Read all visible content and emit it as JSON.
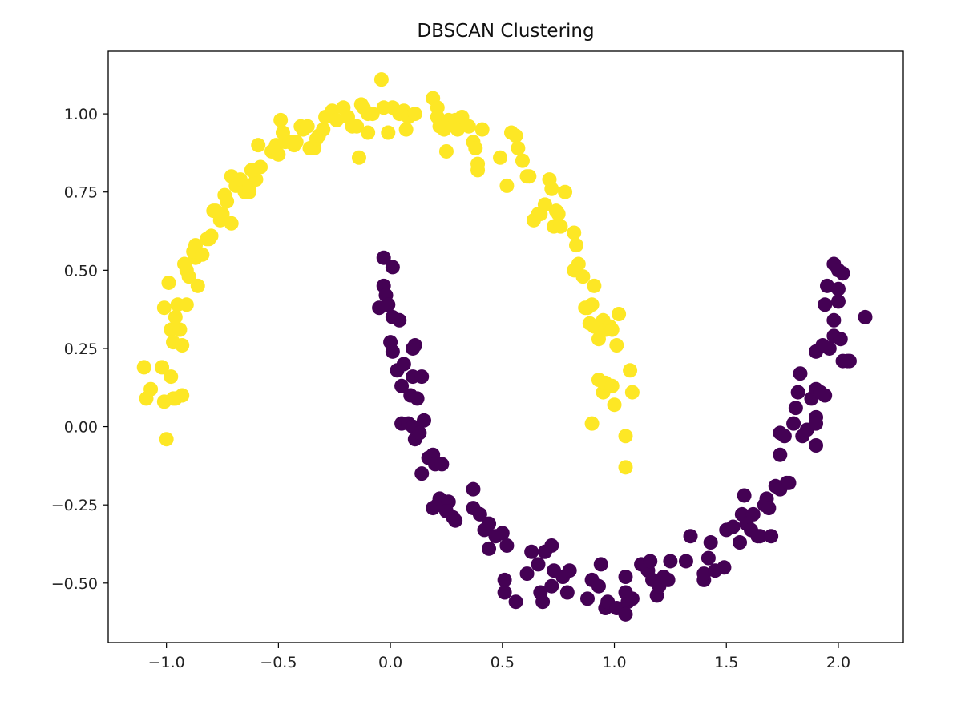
{
  "chart_data": {
    "type": "scatter",
    "title": "DBSCAN Clustering",
    "xlabel": "",
    "ylabel": "",
    "xlim": [
      -1.26,
      2.29
    ],
    "ylim": [
      -0.69,
      1.2
    ],
    "grid": false,
    "x_ticks": [
      "−1.0",
      "−0.5",
      "0.0",
      "0.5",
      "1.0",
      "1.5",
      "2.0"
    ],
    "x_tick_values": [
      -1.0,
      -0.5,
      0.0,
      0.5,
      1.0,
      1.5,
      2.0
    ],
    "y_ticks": [
      "−0.50",
      "−0.25",
      "0.00",
      "0.25",
      "0.50",
      "0.75",
      "1.00"
    ],
    "y_tick_values": [
      -0.5,
      -0.25,
      0.0,
      0.25,
      0.5,
      0.75,
      1.0
    ],
    "series": [
      {
        "color": "#fde725",
        "points": [
          [
            -1.1,
            0.19
          ],
          [
            -1.09,
            0.09
          ],
          [
            -1.07,
            0.12
          ],
          [
            -1.02,
            0.19
          ],
          [
            -1.01,
            0.08
          ],
          [
            -1.0,
            -0.04
          ],
          [
            -0.98,
            0.16
          ],
          [
            -0.97,
            0.09
          ],
          [
            -0.96,
            0.09
          ],
          [
            -0.93,
            0.1
          ],
          [
            -1.01,
            0.38
          ],
          [
            -0.99,
            0.46
          ],
          [
            -0.98,
            0.31
          ],
          [
            -0.97,
            0.27
          ],
          [
            -0.95,
            0.39
          ],
          [
            -0.94,
            0.31
          ],
          [
            -0.93,
            0.26
          ],
          [
            -0.96,
            0.35
          ],
          [
            -0.91,
            0.39
          ],
          [
            -0.91,
            0.5
          ],
          [
            -0.92,
            0.52
          ],
          [
            -0.9,
            0.48
          ],
          [
            -0.87,
            0.54
          ],
          [
            -0.86,
            0.45
          ],
          [
            -0.88,
            0.56
          ],
          [
            -0.87,
            0.58
          ],
          [
            -0.84,
            0.55
          ],
          [
            -0.82,
            0.6
          ],
          [
            -0.81,
            0.6
          ],
          [
            -0.8,
            0.61
          ],
          [
            -0.79,
            0.69
          ],
          [
            -0.78,
            0.69
          ],
          [
            -0.76,
            0.66
          ],
          [
            -0.75,
            0.68
          ],
          [
            -0.74,
            0.74
          ],
          [
            -0.73,
            0.72
          ],
          [
            -0.71,
            0.65
          ],
          [
            -0.71,
            0.8
          ],
          [
            -0.69,
            0.77
          ],
          [
            -0.67,
            0.79
          ],
          [
            -0.65,
            0.75
          ],
          [
            -0.63,
            0.75
          ],
          [
            -0.63,
            0.77
          ],
          [
            -0.6,
            0.79
          ],
          [
            -0.62,
            0.82
          ],
          [
            -0.59,
            0.9
          ],
          [
            -0.58,
            0.83
          ],
          [
            -0.53,
            0.88
          ],
          [
            -0.51,
            0.9
          ],
          [
            -0.5,
            0.87
          ],
          [
            -0.49,
            0.98
          ],
          [
            -0.48,
            0.94
          ],
          [
            -0.47,
            0.91
          ],
          [
            -0.45,
            0.91
          ],
          [
            -0.43,
            0.9
          ],
          [
            -0.42,
            0.91
          ],
          [
            -0.4,
            0.96
          ],
          [
            -0.39,
            0.95
          ],
          [
            -0.37,
            0.96
          ],
          [
            -0.36,
            0.89
          ],
          [
            -0.34,
            0.89
          ],
          [
            -0.33,
            0.92
          ],
          [
            -0.32,
            0.93
          ],
          [
            -0.3,
            0.95
          ],
          [
            -0.29,
            0.99
          ],
          [
            -0.26,
            1.01
          ],
          [
            -0.24,
            0.98
          ],
          [
            -0.21,
            1.02
          ],
          [
            -0.19,
            0.99
          ],
          [
            -0.17,
            0.96
          ],
          [
            -0.15,
            0.96
          ],
          [
            -0.14,
            0.86
          ],
          [
            -0.13,
            1.03
          ],
          [
            -0.12,
            1.02
          ],
          [
            -0.1,
            1.0
          ],
          [
            -0.1,
            0.94
          ],
          [
            -0.08,
            1.0
          ],
          [
            -0.04,
            1.11
          ],
          [
            -0.03,
            1.02
          ],
          [
            -0.01,
            0.94
          ],
          [
            0.01,
            1.02
          ],
          [
            0.04,
            1.0
          ],
          [
            0.06,
            1.01
          ],
          [
            0.07,
            0.95
          ],
          [
            0.08,
            0.99
          ],
          [
            0.11,
            1.0
          ],
          [
            0.19,
            1.05
          ],
          [
            0.21,
            1.02
          ],
          [
            0.21,
            0.99
          ],
          [
            0.22,
            0.96
          ],
          [
            0.24,
            0.95
          ],
          [
            0.25,
            0.88
          ],
          [
            0.26,
            0.98
          ],
          [
            0.29,
            0.98
          ],
          [
            0.3,
            0.95
          ],
          [
            0.32,
            0.99
          ],
          [
            0.35,
            0.96
          ],
          [
            0.37,
            0.91
          ],
          [
            0.38,
            0.89
          ],
          [
            0.39,
            0.84
          ],
          [
            0.39,
            0.82
          ],
          [
            0.41,
            0.95
          ],
          [
            0.49,
            0.86
          ],
          [
            0.52,
            0.77
          ],
          [
            0.54,
            0.94
          ],
          [
            0.56,
            0.93
          ],
          [
            0.57,
            0.89
          ],
          [
            0.59,
            0.85
          ],
          [
            0.61,
            0.8
          ],
          [
            0.62,
            0.8
          ],
          [
            0.64,
            0.66
          ],
          [
            0.66,
            0.68
          ],
          [
            0.67,
            0.68
          ],
          [
            0.69,
            0.71
          ],
          [
            0.71,
            0.79
          ],
          [
            0.72,
            0.76
          ],
          [
            0.73,
            0.64
          ],
          [
            0.74,
            0.69
          ],
          [
            0.75,
            0.68
          ],
          [
            0.76,
            0.64
          ],
          [
            0.78,
            0.75
          ],
          [
            0.82,
            0.62
          ],
          [
            0.83,
            0.58
          ],
          [
            0.82,
            0.5
          ],
          [
            0.84,
            0.52
          ],
          [
            0.86,
            0.48
          ],
          [
            0.87,
            0.38
          ],
          [
            0.89,
            0.33
          ],
          [
            0.9,
            0.39
          ],
          [
            0.91,
            0.45
          ],
          [
            0.88,
            0.38
          ],
          [
            0.9,
            0.01
          ],
          [
            0.91,
            0.32
          ],
          [
            0.93,
            0.28
          ],
          [
            0.95,
            0.34
          ],
          [
            0.96,
            0.31
          ],
          [
            0.98,
            0.32
          ],
          [
            0.99,
            0.31
          ],
          [
            1.01,
            0.26
          ],
          [
            1.02,
            0.36
          ],
          [
            1.07,
            0.18
          ],
          [
            1.08,
            0.11
          ],
          [
            0.93,
            0.15
          ],
          [
            0.95,
            0.11
          ],
          [
            0.96,
            0.14
          ],
          [
            0.99,
            0.13
          ],
          [
            1.05,
            -0.03
          ],
          [
            1.05,
            -0.13
          ],
          [
            1.0,
            0.07
          ]
        ]
      },
      {
        "color": "#440154",
        "points": [
          [
            -0.03,
            0.54
          ],
          [
            0.01,
            0.51
          ],
          [
            -0.03,
            0.45
          ],
          [
            -0.02,
            0.42
          ],
          [
            -0.05,
            0.38
          ],
          [
            -0.01,
            0.39
          ],
          [
            0.01,
            0.35
          ],
          [
            0.04,
            0.34
          ],
          [
            0.0,
            0.27
          ],
          [
            0.01,
            0.24
          ],
          [
            0.1,
            0.25
          ],
          [
            0.11,
            0.26
          ],
          [
            0.03,
            0.18
          ],
          [
            0.05,
            0.13
          ],
          [
            0.06,
            0.2
          ],
          [
            0.1,
            0.16
          ],
          [
            0.14,
            0.16
          ],
          [
            0.09,
            0.1
          ],
          [
            0.12,
            0.09
          ],
          [
            0.05,
            0.01
          ],
          [
            0.08,
            0.01
          ],
          [
            0.1,
            0.0
          ],
          [
            0.15,
            0.02
          ],
          [
            0.11,
            -0.04
          ],
          [
            0.13,
            -0.02
          ],
          [
            0.19,
            -0.09
          ],
          [
            0.17,
            -0.1
          ],
          [
            0.2,
            -0.12
          ],
          [
            0.23,
            -0.12
          ],
          [
            0.14,
            -0.15
          ],
          [
            0.19,
            -0.26
          ],
          [
            0.21,
            -0.25
          ],
          [
            0.22,
            -0.23
          ],
          [
            0.26,
            -0.24
          ],
          [
            0.25,
            -0.27
          ],
          [
            0.28,
            -0.29
          ],
          [
            0.29,
            -0.3
          ],
          [
            0.37,
            -0.2
          ],
          [
            0.37,
            -0.26
          ],
          [
            0.4,
            -0.28
          ],
          [
            0.42,
            -0.33
          ],
          [
            0.44,
            -0.39
          ],
          [
            0.44,
            -0.31
          ],
          [
            0.47,
            -0.35
          ],
          [
            0.5,
            -0.34
          ],
          [
            0.52,
            -0.38
          ],
          [
            0.51,
            -0.49
          ],
          [
            0.51,
            -0.53
          ],
          [
            0.56,
            -0.56
          ],
          [
            0.61,
            -0.47
          ],
          [
            0.63,
            -0.4
          ],
          [
            0.66,
            -0.44
          ],
          [
            0.69,
            -0.4
          ],
          [
            0.72,
            -0.38
          ],
          [
            0.73,
            -0.46
          ],
          [
            0.67,
            -0.53
          ],
          [
            0.68,
            -0.56
          ],
          [
            0.72,
            -0.51
          ],
          [
            0.77,
            -0.48
          ],
          [
            0.79,
            -0.53
          ],
          [
            0.8,
            -0.46
          ],
          [
            0.88,
            -0.55
          ],
          [
            0.9,
            -0.49
          ],
          [
            0.94,
            -0.44
          ],
          [
            0.93,
            -0.51
          ],
          [
            0.96,
            -0.58
          ],
          [
            0.97,
            -0.56
          ],
          [
            1.01,
            -0.58
          ],
          [
            1.05,
            -0.48
          ],
          [
            1.05,
            -0.53
          ],
          [
            1.06,
            -0.56
          ],
          [
            1.05,
            -0.6
          ],
          [
            1.08,
            -0.55
          ],
          [
            1.12,
            -0.44
          ],
          [
            1.15,
            -0.46
          ],
          [
            1.16,
            -0.43
          ],
          [
            1.17,
            -0.49
          ],
          [
            1.19,
            -0.54
          ],
          [
            1.2,
            -0.51
          ],
          [
            1.22,
            -0.48
          ],
          [
            1.24,
            -0.49
          ],
          [
            1.25,
            -0.43
          ],
          [
            1.32,
            -0.43
          ],
          [
            1.34,
            -0.35
          ],
          [
            1.4,
            -0.49
          ],
          [
            1.4,
            -0.47
          ],
          [
            1.42,
            -0.42
          ],
          [
            1.43,
            -0.37
          ],
          [
            1.45,
            -0.46
          ],
          [
            1.49,
            -0.45
          ],
          [
            1.5,
            -0.33
          ],
          [
            1.53,
            -0.32
          ],
          [
            1.56,
            -0.37
          ],
          [
            1.57,
            -0.28
          ],
          [
            1.58,
            -0.22
          ],
          [
            1.59,
            -0.31
          ],
          [
            1.61,
            -0.33
          ],
          [
            1.62,
            -0.28
          ],
          [
            1.64,
            -0.35
          ],
          [
            1.65,
            -0.35
          ],
          [
            1.67,
            -0.25
          ],
          [
            1.68,
            -0.23
          ],
          [
            1.69,
            -0.26
          ],
          [
            1.72,
            -0.19
          ],
          [
            1.74,
            -0.2
          ],
          [
            1.77,
            -0.18
          ],
          [
            1.7,
            -0.35
          ],
          [
            1.78,
            -0.18
          ],
          [
            1.74,
            -0.02
          ],
          [
            1.74,
            -0.09
          ],
          [
            1.76,
            -0.03
          ],
          [
            1.8,
            0.01
          ],
          [
            1.81,
            0.06
          ],
          [
            1.82,
            0.11
          ],
          [
            1.83,
            0.17
          ],
          [
            1.84,
            -0.03
          ],
          [
            1.86,
            -0.01
          ],
          [
            1.88,
            0.09
          ],
          [
            1.9,
            0.12
          ],
          [
            1.9,
            0.03
          ],
          [
            1.9,
            0.01
          ],
          [
            1.9,
            -0.06
          ],
          [
            1.92,
            0.11
          ],
          [
            1.94,
            0.1
          ],
          [
            1.96,
            0.25
          ],
          [
            1.98,
            0.29
          ],
          [
            2.01,
            0.28
          ],
          [
            2.02,
            0.21
          ],
          [
            2.04,
            0.21
          ],
          [
            1.98,
            0.34
          ],
          [
            2.0,
            0.4
          ],
          [
            1.94,
            0.39
          ],
          [
            1.95,
            0.45
          ],
          [
            1.98,
            0.52
          ],
          [
            2.0,
            0.5
          ],
          [
            2.02,
            0.49
          ],
          [
            2.0,
            0.44
          ],
          [
            2.05,
            0.21
          ],
          [
            2.12,
            0.35
          ],
          [
            1.9,
            0.24
          ],
          [
            1.93,
            0.26
          ]
        ]
      }
    ]
  }
}
